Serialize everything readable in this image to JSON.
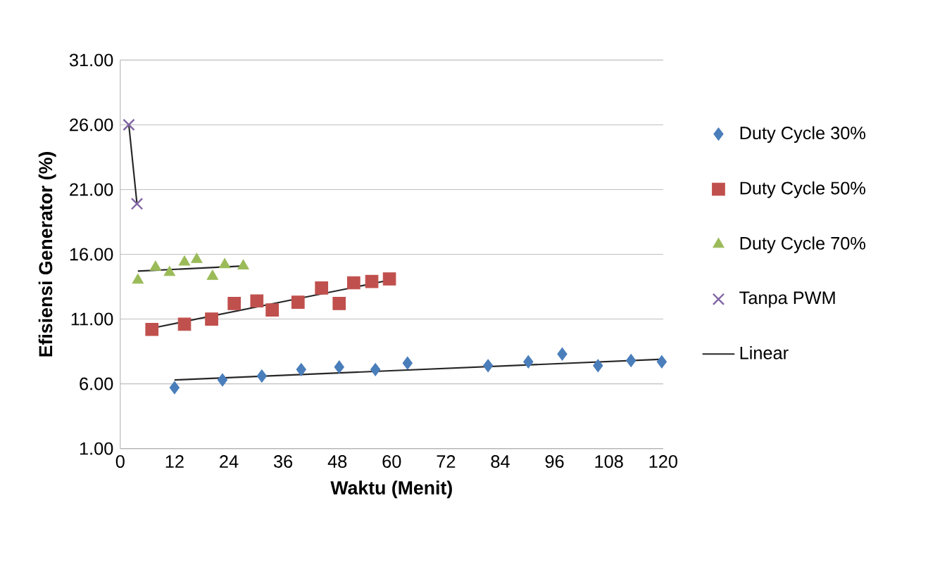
{
  "chart_data": {
    "type": "scatter",
    "xlabel": "Waktu (Menit)",
    "ylabel": "Efisiensi Generator (%)",
    "xlim": [
      0,
      120
    ],
    "xticks": [
      0,
      12,
      24,
      36,
      48,
      60,
      72,
      84,
      96,
      108,
      120
    ],
    "ylim": [
      1,
      31
    ],
    "yticks": [
      {
        "value": 1,
        "label": "1.00"
      },
      {
        "value": 6,
        "label": "6.00"
      },
      {
        "value": 11,
        "label": "11.00"
      },
      {
        "value": 16,
        "label": "16.00"
      },
      {
        "value": 21,
        "label": "21.00"
      },
      {
        "value": 26,
        "label": "26.00"
      },
      {
        "value": 31,
        "label": "31.00"
      }
    ],
    "grid": "y",
    "legend": "right",
    "series": [
      {
        "name": "Duty Cycle 30%",
        "color": "#4a7ebb",
        "marker": "diamond",
        "x": [
          12,
          22.6,
          31.3,
          40,
          48.4,
          56.4,
          63.5,
          81.3,
          90.2,
          97.7,
          105.6,
          112.9,
          119.7
        ],
        "values": [
          5.7,
          6.3,
          6.6,
          7.1,
          7.3,
          7.1,
          7.6,
          7.4,
          7.7,
          8.3,
          7.4,
          7.8,
          7.7
        ]
      },
      {
        "name": "Duty Cycle 50%",
        "color": "#c0504d",
        "marker": "square",
        "x": [
          7,
          14.2,
          20.2,
          25.2,
          30.2,
          33.6,
          39.3,
          44.5,
          48.4,
          51.6,
          55.6,
          59.5
        ],
        "values": [
          10.2,
          10.6,
          11.0,
          12.2,
          12.4,
          11.7,
          12.3,
          13.4,
          12.2,
          13.8,
          13.9,
          14.1
        ]
      },
      {
        "name": "Duty Cycle 70%",
        "color": "#9bbb59",
        "marker": "triangle",
        "x": [
          3.9,
          7.8,
          10.9,
          14.2,
          16.9,
          20.4,
          23.1,
          27.2
        ],
        "values": [
          14.0,
          15.0,
          14.6,
          15.4,
          15.6,
          14.3,
          15.2,
          15.1
        ]
      },
      {
        "name": "Tanpa PWM",
        "color": "#8064a2",
        "marker": "cross",
        "x": [
          1.9,
          3.7
        ],
        "values": [
          26.0,
          19.9
        ]
      },
      {
        "name": "Linear",
        "type": "line",
        "color": "#262626",
        "marker": "none",
        "x": [
          12,
          120
        ],
        "values": [
          6.3,
          7.9
        ]
      },
      {
        "type": "line",
        "color": "#262626",
        "marker": "none",
        "x": [
          7,
          59.5
        ],
        "values": [
          10.3,
          14.0
        ]
      },
      {
        "type": "line",
        "color": "#262626",
        "marker": "none",
        "x": [
          3.9,
          27.2
        ],
        "values": [
          14.7,
          15.1
        ]
      },
      {
        "type": "line",
        "color": "#262626",
        "marker": "none",
        "x": [
          1.9,
          3.7
        ],
        "values": [
          26.0,
          19.9
        ]
      }
    ]
  }
}
